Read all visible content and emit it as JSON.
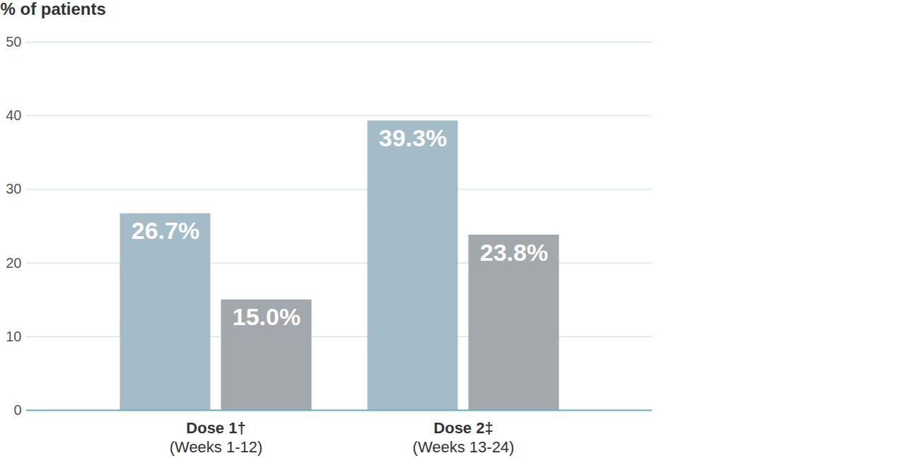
{
  "chart_data": {
    "type": "bar",
    "ylabel": "% of patients",
    "categories": [
      "Dose 1†\n(Weeks 1-12)",
      "Dose 2‡\n(Weeks 13-24)"
    ],
    "series": [
      {
        "color": "#a3bcc8",
        "values": [
          26.7,
          39.3
        ],
        "value_labels": [
          "26.7%",
          "39.3%"
        ]
      },
      {
        "color": "#a2a8ab",
        "values": [
          15.0,
          23.8
        ],
        "value_labels": [
          "15.0%",
          "23.8%"
        ]
      }
    ],
    "ylim": [
      0,
      50
    ],
    "yticks": [
      0,
      10,
      20,
      30,
      40,
      50
    ],
    "grid": true,
    "data_labels": true
  }
}
